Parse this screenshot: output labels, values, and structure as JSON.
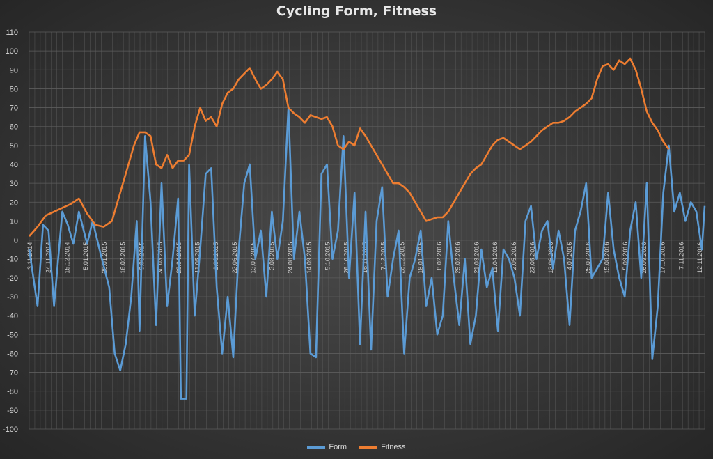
{
  "chart_data": {
    "type": "line",
    "title": "Cycling Form, Fitness",
    "ylim": [
      -100,
      110
    ],
    "yticks": [
      110,
      100,
      90,
      80,
      70,
      60,
      50,
      40,
      30,
      20,
      10,
      0,
      -10,
      -20,
      -30,
      -40,
      -50,
      -60,
      -70,
      -80,
      -90,
      -100
    ],
    "x_tick_labels": [
      "3.11.2014",
      "24.11.2014",
      "15.12.2014",
      "5.01.2015",
      "26.01.2015",
      "16.02.2015",
      "9.03.2015",
      "30.03.2015",
      "20.04.2015",
      "11.05.2015",
      "1.06.2015",
      "22.06.2015",
      "13.07.2015",
      "3.08.2015",
      "24.08.2015",
      "14.09.2015",
      "5.10.2015",
      "26.10.2015",
      "16.11.2015",
      "7.12.2015",
      "28.12.2015",
      "18.01.2016",
      "8.02.2016",
      "29.02.2016",
      "21.03.2016",
      "11.04.2016",
      "2.05.2016",
      "23.05.2016",
      "13.06.2016",
      "4.07.2016",
      "25.07.2016",
      "15.08.2016",
      "5.09.2016",
      "26.09.2016",
      "17.10.2016",
      "7.11.2016",
      "12.11.2016"
    ],
    "grid": true,
    "legend_position": "bottom",
    "series": [
      {
        "name": "Form",
        "color": "#5b9bd5",
        "points": [
          [
            0,
            -5
          ],
          [
            3,
            -35
          ],
          [
            5,
            8
          ],
          [
            7,
            5
          ],
          [
            9,
            -35
          ],
          [
            12,
            15
          ],
          [
            14,
            8
          ],
          [
            16,
            -2
          ],
          [
            18,
            15
          ],
          [
            21,
            -2
          ],
          [
            23,
            10
          ],
          [
            26,
            -8
          ],
          [
            29,
            -25
          ],
          [
            31,
            -60
          ],
          [
            33,
            -69
          ],
          [
            35,
            -55
          ],
          [
            37,
            -30
          ],
          [
            39,
            10
          ],
          [
            40,
            -48
          ],
          [
            42,
            55
          ],
          [
            44,
            20
          ],
          [
            46,
            -45
          ],
          [
            48,
            30
          ],
          [
            50,
            -35
          ],
          [
            52,
            -10
          ],
          [
            54,
            22
          ],
          [
            55,
            -84
          ],
          [
            57,
            -84
          ],
          [
            58,
            40
          ],
          [
            60,
            -40
          ],
          [
            62,
            -5
          ],
          [
            64,
            35
          ],
          [
            66,
            38
          ],
          [
            68,
            -25
          ],
          [
            70,
            -60
          ],
          [
            72,
            -30
          ],
          [
            74,
            -62
          ],
          [
            76,
            -5
          ],
          [
            78,
            30
          ],
          [
            80,
            40
          ],
          [
            82,
            -10
          ],
          [
            84,
            5
          ],
          [
            86,
            -30
          ],
          [
            88,
            15
          ],
          [
            90,
            -10
          ],
          [
            92,
            10
          ],
          [
            94,
            70
          ],
          [
            96,
            -10
          ],
          [
            98,
            15
          ],
          [
            100,
            -10
          ],
          [
            102,
            -60
          ],
          [
            104,
            -62
          ],
          [
            106,
            35
          ],
          [
            108,
            40
          ],
          [
            110,
            -10
          ],
          [
            112,
            5
          ],
          [
            114,
            55
          ],
          [
            116,
            -20
          ],
          [
            118,
            25
          ],
          [
            120,
            -55
          ],
          [
            122,
            15
          ],
          [
            124,
            -58
          ],
          [
            126,
            10
          ],
          [
            128,
            28
          ],
          [
            130,
            -30
          ],
          [
            132,
            -10
          ],
          [
            134,
            5
          ],
          [
            136,
            -60
          ],
          [
            138,
            -20
          ],
          [
            140,
            -10
          ],
          [
            142,
            5
          ],
          [
            144,
            -35
          ],
          [
            146,
            -20
          ],
          [
            148,
            -50
          ],
          [
            150,
            -40
          ],
          [
            152,
            10
          ],
          [
            154,
            -20
          ],
          [
            156,
            -45
          ],
          [
            158,
            -10
          ],
          [
            160,
            -55
          ],
          [
            162,
            -40
          ],
          [
            164,
            -5
          ],
          [
            166,
            -25
          ],
          [
            168,
            -15
          ],
          [
            170,
            -48
          ],
          [
            172,
            -5
          ],
          [
            174,
            -10
          ],
          [
            176,
            -20
          ],
          [
            178,
            -40
          ],
          [
            180,
            10
          ],
          [
            182,
            18
          ],
          [
            184,
            -10
          ],
          [
            186,
            5
          ],
          [
            188,
            10
          ],
          [
            190,
            -15
          ],
          [
            192,
            5
          ],
          [
            194,
            -10
          ],
          [
            196,
            -45
          ],
          [
            198,
            5
          ],
          [
            200,
            15
          ],
          [
            202,
            30
          ],
          [
            204,
            -20
          ],
          [
            206,
            -15
          ],
          [
            208,
            -10
          ],
          [
            210,
            25
          ],
          [
            212,
            -5
          ],
          [
            214,
            -20
          ],
          [
            216,
            -30
          ],
          [
            218,
            5
          ],
          [
            220,
            20
          ],
          [
            222,
            -20
          ],
          [
            224,
            30
          ],
          [
            226,
            -63
          ],
          [
            228,
            -35
          ],
          [
            230,
            25
          ],
          [
            232,
            50
          ],
          [
            234,
            15
          ],
          [
            236,
            25
          ],
          [
            238,
            10
          ],
          [
            240,
            20
          ],
          [
            242,
            15
          ],
          [
            244,
            -5
          ],
          [
            245,
            18
          ]
        ]
      },
      {
        "name": "Fitness",
        "color": "#ed7d31",
        "points": [
          [
            0,
            2
          ],
          [
            3,
            7
          ],
          [
            6,
            13
          ],
          [
            9,
            15
          ],
          [
            12,
            17
          ],
          [
            15,
            19
          ],
          [
            18,
            22
          ],
          [
            21,
            14
          ],
          [
            24,
            8
          ],
          [
            27,
            7
          ],
          [
            30,
            10
          ],
          [
            32,
            20
          ],
          [
            34,
            30
          ],
          [
            36,
            40
          ],
          [
            38,
            50
          ],
          [
            40,
            57
          ],
          [
            42,
            57
          ],
          [
            44,
            55
          ],
          [
            46,
            40
          ],
          [
            48,
            38
          ],
          [
            50,
            45
          ],
          [
            52,
            38
          ],
          [
            54,
            42
          ],
          [
            56,
            42
          ],
          [
            58,
            45
          ],
          [
            60,
            60
          ],
          [
            62,
            70
          ],
          [
            64,
            63
          ],
          [
            66,
            65
          ],
          [
            68,
            60
          ],
          [
            70,
            72
          ],
          [
            72,
            78
          ],
          [
            74,
            80
          ],
          [
            76,
            85
          ],
          [
            78,
            88
          ],
          [
            80,
            91
          ],
          [
            82,
            85
          ],
          [
            84,
            80
          ],
          [
            86,
            82
          ],
          [
            88,
            85
          ],
          [
            90,
            89
          ],
          [
            92,
            85
          ],
          [
            94,
            70
          ],
          [
            96,
            67
          ],
          [
            98,
            65
          ],
          [
            100,
            62
          ],
          [
            102,
            66
          ],
          [
            104,
            65
          ],
          [
            106,
            64
          ],
          [
            108,
            65
          ],
          [
            110,
            60
          ],
          [
            112,
            50
          ],
          [
            114,
            48
          ],
          [
            116,
            52
          ],
          [
            118,
            50
          ],
          [
            120,
            59
          ],
          [
            122,
            55
          ],
          [
            124,
            50
          ],
          [
            126,
            45
          ],
          [
            128,
            40
          ],
          [
            130,
            35
          ],
          [
            132,
            30
          ],
          [
            134,
            30
          ],
          [
            136,
            28
          ],
          [
            138,
            25
          ],
          [
            140,
            20
          ],
          [
            142,
            15
          ],
          [
            144,
            10
          ],
          [
            146,
            11
          ],
          [
            148,
            12
          ],
          [
            150,
            12
          ],
          [
            152,
            15
          ],
          [
            154,
            20
          ],
          [
            156,
            25
          ],
          [
            158,
            30
          ],
          [
            160,
            35
          ],
          [
            162,
            38
          ],
          [
            164,
            40
          ],
          [
            166,
            45
          ],
          [
            168,
            50
          ],
          [
            170,
            53
          ],
          [
            172,
            54
          ],
          [
            174,
            52
          ],
          [
            176,
            50
          ],
          [
            178,
            48
          ],
          [
            180,
            50
          ],
          [
            182,
            52
          ],
          [
            184,
            55
          ],
          [
            186,
            58
          ],
          [
            188,
            60
          ],
          [
            190,
            62
          ],
          [
            192,
            62
          ],
          [
            194,
            63
          ],
          [
            196,
            65
          ],
          [
            198,
            68
          ],
          [
            200,
            70
          ],
          [
            202,
            72
          ],
          [
            204,
            75
          ],
          [
            206,
            85
          ],
          [
            208,
            92
          ],
          [
            210,
            93
          ],
          [
            212,
            90
          ],
          [
            214,
            95
          ],
          [
            216,
            93
          ],
          [
            218,
            96
          ],
          [
            220,
            90
          ],
          [
            222,
            80
          ],
          [
            224,
            68
          ],
          [
            226,
            62
          ],
          [
            228,
            58
          ],
          [
            230,
            52
          ],
          [
            232,
            48
          ]
        ]
      }
    ]
  }
}
